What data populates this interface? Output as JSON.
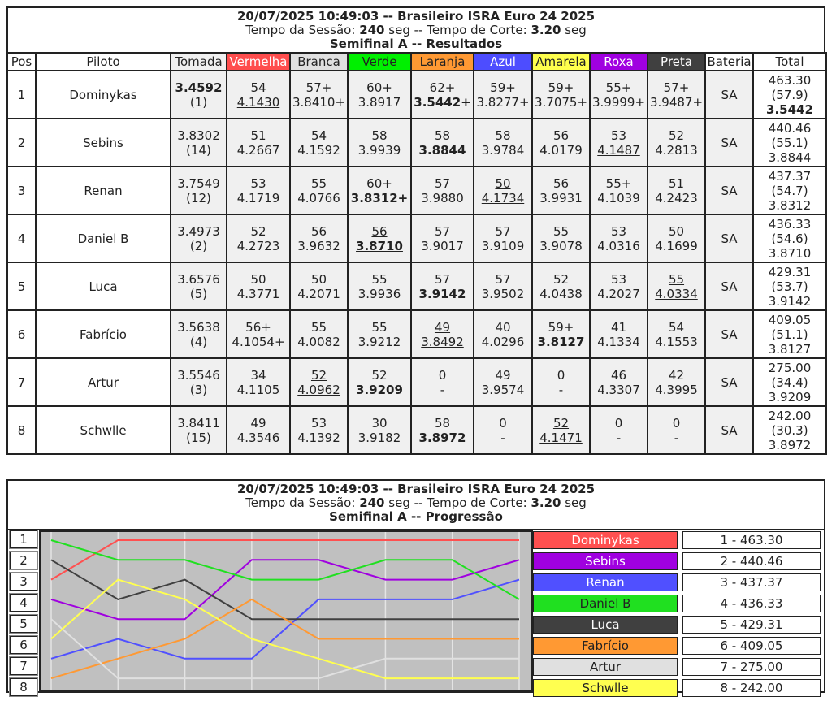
{
  "header": {
    "datetime_event": "20/07/2025 10:49:03 -- Brasileiro ISRA Euro 24 2025",
    "session_label": "Tempo da Sessão:",
    "session_value": "240",
    "session_unit": "seg --",
    "cut_label": "Tempo de Corte:",
    "cut_value": "3.20",
    "cut_unit": "seg",
    "results_title": "Semifinal A -- Resultados",
    "progress_title": "Semifinal A -- Progressão"
  },
  "columns": {
    "pos": "Pos",
    "pilot": "Piloto",
    "tomada": "Tomada",
    "bateria": "Bateria",
    "total": "Total"
  },
  "lanes": [
    {
      "name": "Vermelha",
      "bg": "#ff4d4d",
      "fg": "#fff"
    },
    {
      "name": "Branca",
      "bg": "#e0e0e0",
      "fg": "#222"
    },
    {
      "name": "Verde",
      "bg": "#00f000",
      "fg": "#222"
    },
    {
      "name": "Laranja",
      "bg": "#ff9933",
      "fg": "#222"
    },
    {
      "name": "Azul",
      "bg": "#4d4dff",
      "fg": "#fff"
    },
    {
      "name": "Amarela",
      "bg": "#ffff4d",
      "fg": "#222"
    },
    {
      "name": "Roxa",
      "bg": "#a000e0",
      "fg": "#fff"
    },
    {
      "name": "Preta",
      "bg": "#404040",
      "fg": "#fff"
    }
  ],
  "rows": [
    {
      "pos": "1",
      "pilot": "Dominykas",
      "tomada": "3.4592",
      "rank": "(1)",
      "tbold": true,
      "heats": [
        [
          "54",
          "4.1430",
          "u"
        ],
        [
          "57+",
          "3.8410+",
          ""
        ],
        [
          "60+",
          "3.8917",
          ""
        ],
        [
          "62+",
          "3.5442+",
          "b"
        ],
        [
          "59+",
          "3.8277+",
          ""
        ],
        [
          "59+",
          "3.7075+",
          ""
        ],
        [
          "55+",
          "3.9999+",
          ""
        ],
        [
          "57+",
          "3.9487+",
          ""
        ]
      ],
      "bateria": "SA",
      "total": "463.30",
      "avg": "(57.9)",
      "best": "3.5442",
      "bbold": true
    },
    {
      "pos": "2",
      "pilot": "Sebins",
      "tomada": "3.8302",
      "rank": "(14)",
      "heats": [
        [
          "51",
          "4.2667",
          ""
        ],
        [
          "54",
          "4.1592",
          ""
        ],
        [
          "58",
          "3.9939",
          ""
        ],
        [
          "58",
          "3.8844",
          "b"
        ],
        [
          "58",
          "3.9784",
          ""
        ],
        [
          "56",
          "4.0179",
          ""
        ],
        [
          "53",
          "4.1487",
          "u"
        ],
        [
          "52",
          "4.2813",
          ""
        ]
      ],
      "bateria": "SA",
      "total": "440.46",
      "avg": "(55.1)",
      "best": "3.8844"
    },
    {
      "pos": "3",
      "pilot": "Renan",
      "tomada": "3.7549",
      "rank": "(12)",
      "heats": [
        [
          "53",
          "4.1719",
          ""
        ],
        [
          "55",
          "4.0766",
          ""
        ],
        [
          "60+",
          "3.8312+",
          "b"
        ],
        [
          "57",
          "3.9880",
          ""
        ],
        [
          "50",
          "4.1734",
          "u"
        ],
        [
          "56",
          "3.9931",
          ""
        ],
        [
          "55+",
          "4.1039",
          ""
        ],
        [
          "51",
          "4.2423",
          ""
        ]
      ],
      "bateria": "SA",
      "total": "437.37",
      "avg": "(54.7)",
      "best": "3.8312"
    },
    {
      "pos": "4",
      "pilot": "Daniel B",
      "tomada": "3.4973",
      "rank": "(2)",
      "heats": [
        [
          "52",
          "4.2723",
          ""
        ],
        [
          "56",
          "3.9632",
          ""
        ],
        [
          "56",
          "3.8710",
          "ub"
        ],
        [
          "57",
          "3.9017",
          ""
        ],
        [
          "57",
          "3.9109",
          ""
        ],
        [
          "55",
          "3.9078",
          ""
        ],
        [
          "53",
          "4.0316",
          ""
        ],
        [
          "50",
          "4.1699",
          ""
        ]
      ],
      "bateria": "SA",
      "total": "436.33",
      "avg": "(54.6)",
      "best": "3.8710"
    },
    {
      "pos": "5",
      "pilot": "Luca",
      "tomada": "3.6576",
      "rank": "(5)",
      "heats": [
        [
          "50",
          "4.3771",
          ""
        ],
        [
          "50",
          "4.2071",
          ""
        ],
        [
          "55",
          "3.9936",
          ""
        ],
        [
          "57",
          "3.9142",
          "b"
        ],
        [
          "57",
          "3.9502",
          ""
        ],
        [
          "52",
          "4.0438",
          ""
        ],
        [
          "53",
          "4.2027",
          ""
        ],
        [
          "55",
          "4.0334",
          "u"
        ]
      ],
      "bateria": "SA",
      "total": "429.31",
      "avg": "(53.7)",
      "best": "3.9142"
    },
    {
      "pos": "6",
      "pilot": "Fabrício",
      "tomada": "3.5638",
      "rank": "(4)",
      "heats": [
        [
          "56+",
          "4.1054+",
          ""
        ],
        [
          "55",
          "4.0082",
          ""
        ],
        [
          "55",
          "3.9212",
          ""
        ],
        [
          "49",
          "3.8492",
          "u"
        ],
        [
          "40",
          "4.0296",
          ""
        ],
        [
          "59+",
          "3.8127",
          "b"
        ],
        [
          "41",
          "4.1334",
          ""
        ],
        [
          "54",
          "4.1553",
          ""
        ]
      ],
      "bateria": "SA",
      "total": "409.05",
      "avg": "(51.1)",
      "best": "3.8127"
    },
    {
      "pos": "7",
      "pilot": "Artur",
      "tomada": "3.5546",
      "rank": "(3)",
      "heats": [
        [
          "34",
          "4.1105",
          ""
        ],
        [
          "52",
          "4.0962",
          "u"
        ],
        [
          "52",
          "3.9209",
          "b"
        ],
        [
          "0",
          "-",
          ""
        ],
        [
          "49",
          "3.9574",
          ""
        ],
        [
          "0",
          "-",
          ""
        ],
        [
          "46",
          "4.3307",
          ""
        ],
        [
          "42",
          "4.3995",
          ""
        ]
      ],
      "bateria": "SA",
      "total": "275.00",
      "avg": "(34.4)",
      "best": "3.9209"
    },
    {
      "pos": "8",
      "pilot": "Schwlle",
      "tomada": "3.8411",
      "rank": "(15)",
      "heats": [
        [
          "49",
          "4.3546",
          ""
        ],
        [
          "53",
          "4.1392",
          ""
        ],
        [
          "30",
          "3.9182",
          ""
        ],
        [
          "58",
          "3.8972",
          "b"
        ],
        [
          "0",
          "-",
          ""
        ],
        [
          "52",
          "4.1471",
          "u"
        ],
        [
          "0",
          "-",
          ""
        ],
        [
          "0",
          "-",
          ""
        ]
      ],
      "bateria": "SA",
      "total": "242.00",
      "avg": "(30.3)",
      "best": "3.8972"
    }
  ],
  "chart_data": {
    "type": "line",
    "title": "Semifinal A -- Progressão",
    "y_labels": [
      "1",
      "2",
      "3",
      "4",
      "5",
      "6",
      "7",
      "8"
    ],
    "ylim": [
      1,
      8
    ],
    "x": [
      0,
      1,
      2,
      3,
      4,
      5,
      6,
      7
    ],
    "series": [
      {
        "name": "Dominykas",
        "color": "#ff5050",
        "values": [
          3,
          1,
          1,
          1,
          1,
          1,
          1,
          1
        ],
        "label": "1 - 463.30",
        "fg": "#fff"
      },
      {
        "name": "Sebins",
        "color": "#a000e0",
        "values": [
          4,
          5,
          5,
          2,
          2,
          3,
          3,
          2
        ],
        "label": "2 - 440.46",
        "fg": "#fff"
      },
      {
        "name": "Renan",
        "color": "#5050ff",
        "values": [
          7,
          6,
          7,
          7,
          4,
          4,
          4,
          3
        ],
        "label": "3 - 437.37",
        "fg": "#fff"
      },
      {
        "name": "Daniel B",
        "color": "#20e020",
        "values": [
          1,
          2,
          2,
          3,
          3,
          2,
          2,
          4
        ],
        "label": "4 - 436.33",
        "fg": "#222"
      },
      {
        "name": "Luca",
        "color": "#404040",
        "values": [
          2,
          4,
          3,
          5,
          5,
          5,
          5,
          5
        ],
        "label": "5 - 429.31",
        "fg": "#fff"
      },
      {
        "name": "Fabrício",
        "color": "#ff9933",
        "values": [
          8,
          7,
          6,
          4,
          6,
          6,
          6,
          6
        ],
        "label": "6 - 409.05",
        "fg": "#222"
      },
      {
        "name": "Artur",
        "color": "#e0e0e0",
        "values": [
          5,
          8,
          8,
          8,
          8,
          7,
          7,
          7
        ],
        "label": "7 - 275.00",
        "fg": "#222"
      },
      {
        "name": "Schwlle",
        "color": "#ffff50",
        "values": [
          6,
          3,
          4,
          6,
          7,
          8,
          8,
          8
        ],
        "label": "8 - 242.00",
        "fg": "#222"
      }
    ]
  }
}
